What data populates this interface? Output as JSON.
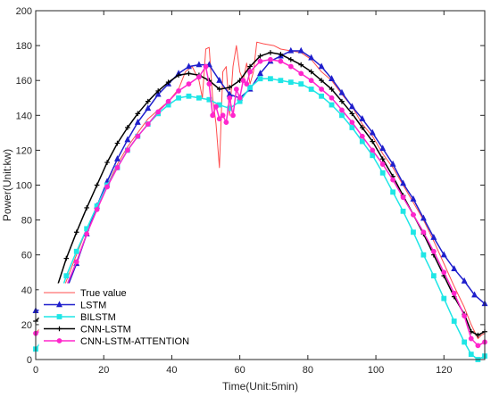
{
  "chart_data": {
    "type": "line",
    "xlabel": "Time(Unit:5min)",
    "ylabel": "Power(Unit:kw)",
    "xlim": [
      0,
      132
    ],
    "ylim": [
      0,
      200
    ],
    "xticks": [
      0,
      20,
      40,
      60,
      80,
      100,
      120
    ],
    "yticks": [
      0,
      20,
      40,
      60,
      80,
      100,
      120,
      140,
      160,
      180,
      200
    ],
    "grid": false,
    "legend_position": "bottom-left",
    "series": [
      {
        "name": "True value",
        "color": "#ff4d4d",
        "marker": "none",
        "points": [
          [
            0,
            15
          ],
          [
            3,
            22
          ],
          [
            6,
            30
          ],
          [
            9,
            45
          ],
          [
            12,
            60
          ],
          [
            15,
            75
          ],
          [
            18,
            88
          ],
          [
            21,
            100
          ],
          [
            24,
            112
          ],
          [
            27,
            122
          ],
          [
            30,
            130
          ],
          [
            33,
            138
          ],
          [
            36,
            143
          ],
          [
            39,
            148
          ],
          [
            42,
            155
          ],
          [
            44,
            165
          ],
          [
            46,
            168
          ],
          [
            48,
            160
          ],
          [
            49,
            150
          ],
          [
            50,
            178
          ],
          [
            51,
            179
          ],
          [
            52,
            150
          ],
          [
            53,
            135
          ],
          [
            54,
            110
          ],
          [
            55,
            165
          ],
          [
            56,
            168
          ],
          [
            57,
            140
          ],
          [
            58,
            168
          ],
          [
            59,
            180
          ],
          [
            60,
            165
          ],
          [
            61,
            160
          ],
          [
            62,
            170
          ],
          [
            63,
            158
          ],
          [
            64,
            165
          ],
          [
            65,
            182
          ],
          [
            67,
            181
          ],
          [
            70,
            180
          ],
          [
            72,
            178
          ],
          [
            75,
            177
          ],
          [
            78,
            176
          ],
          [
            81,
            172
          ],
          [
            84,
            165
          ],
          [
            87,
            160
          ],
          [
            90,
            152
          ],
          [
            93,
            145
          ],
          [
            96,
            135
          ],
          [
            99,
            128
          ],
          [
            102,
            118
          ],
          [
            105,
            110
          ],
          [
            108,
            100
          ],
          [
            111,
            90
          ],
          [
            114,
            80
          ],
          [
            117,
            68
          ],
          [
            120,
            55
          ],
          [
            123,
            42
          ],
          [
            126,
            30
          ],
          [
            128,
            20
          ],
          [
            130,
            12
          ],
          [
            131,
            14
          ],
          [
            132,
            15
          ]
        ]
      },
      {
        "name": "LSTM",
        "color": "#1f1fcc",
        "marker": "triangle",
        "points": [
          [
            0,
            28
          ],
          [
            3,
            29
          ],
          [
            6,
            32
          ],
          [
            9,
            40
          ],
          [
            12,
            55
          ],
          [
            15,
            72
          ],
          [
            18,
            88
          ],
          [
            21,
            102
          ],
          [
            24,
            115
          ],
          [
            27,
            126
          ],
          [
            30,
            136
          ],
          [
            33,
            144
          ],
          [
            36,
            152
          ],
          [
            39,
            158
          ],
          [
            42,
            164
          ],
          [
            45,
            168
          ],
          [
            48,
            169
          ],
          [
            51,
            169
          ],
          [
            54,
            160
          ],
          [
            57,
            152
          ],
          [
            60,
            150
          ],
          [
            63,
            155
          ],
          [
            66,
            164
          ],
          [
            69,
            171
          ],
          [
            72,
            174
          ],
          [
            75,
            177
          ],
          [
            78,
            177
          ],
          [
            81,
            173
          ],
          [
            84,
            168
          ],
          [
            87,
            161
          ],
          [
            90,
            153
          ],
          [
            93,
            145
          ],
          [
            96,
            138
          ],
          [
            99,
            130
          ],
          [
            102,
            121
          ],
          [
            105,
            112
          ],
          [
            108,
            101
          ],
          [
            111,
            92
          ],
          [
            114,
            81
          ],
          [
            117,
            70
          ],
          [
            120,
            60
          ],
          [
            123,
            52
          ],
          [
            126,
            45
          ],
          [
            129,
            37
          ],
          [
            132,
            32
          ]
        ]
      },
      {
        "name": "BILSTM",
        "color": "#1ee6e6",
        "marker": "square",
        "points": [
          [
            0,
            6
          ],
          [
            3,
            14
          ],
          [
            6,
            30
          ],
          [
            9,
            48
          ],
          [
            12,
            62
          ],
          [
            15,
            75
          ],
          [
            18,
            88
          ],
          [
            21,
            100
          ],
          [
            24,
            110
          ],
          [
            27,
            120
          ],
          [
            30,
            128
          ],
          [
            33,
            135
          ],
          [
            36,
            141
          ],
          [
            39,
            146
          ],
          [
            42,
            150
          ],
          [
            45,
            151
          ],
          [
            48,
            150
          ],
          [
            51,
            149
          ],
          [
            54,
            146
          ],
          [
            57,
            144
          ],
          [
            60,
            148
          ],
          [
            63,
            156
          ],
          [
            66,
            161
          ],
          [
            69,
            161
          ],
          [
            72,
            160
          ],
          [
            75,
            159
          ],
          [
            78,
            158
          ],
          [
            81,
            155
          ],
          [
            84,
            151
          ],
          [
            87,
            146
          ],
          [
            90,
            140
          ],
          [
            93,
            133
          ],
          [
            96,
            125
          ],
          [
            99,
            117
          ],
          [
            102,
            107
          ],
          [
            105,
            96
          ],
          [
            108,
            85
          ],
          [
            111,
            73
          ],
          [
            114,
            60
          ],
          [
            117,
            48
          ],
          [
            120,
            35
          ],
          [
            123,
            22
          ],
          [
            126,
            10
          ],
          [
            128,
            3
          ],
          [
            130,
            0
          ],
          [
            132,
            2
          ]
        ]
      },
      {
        "name": "CNN-LSTM",
        "color": "#000000",
        "marker": "plus",
        "points": [
          [
            0,
            22
          ],
          [
            3,
            28
          ],
          [
            6,
            40
          ],
          [
            9,
            58
          ],
          [
            12,
            73
          ],
          [
            15,
            87
          ],
          [
            18,
            100
          ],
          [
            21,
            113
          ],
          [
            24,
            124
          ],
          [
            27,
            133
          ],
          [
            30,
            141
          ],
          [
            33,
            148
          ],
          [
            36,
            154
          ],
          [
            39,
            159
          ],
          [
            42,
            163
          ],
          [
            45,
            164
          ],
          [
            48,
            163
          ],
          [
            51,
            160
          ],
          [
            54,
            155
          ],
          [
            57,
            156
          ],
          [
            60,
            160
          ],
          [
            63,
            168
          ],
          [
            66,
            174
          ],
          [
            69,
            176
          ],
          [
            72,
            175
          ],
          [
            75,
            172
          ],
          [
            78,
            169
          ],
          [
            81,
            165
          ],
          [
            84,
            160
          ],
          [
            87,
            155
          ],
          [
            90,
            148
          ],
          [
            93,
            141
          ],
          [
            96,
            133
          ],
          [
            99,
            125
          ],
          [
            102,
            115
          ],
          [
            105,
            105
          ],
          [
            108,
            94
          ],
          [
            111,
            83
          ],
          [
            114,
            72
          ],
          [
            117,
            60
          ],
          [
            120,
            48
          ],
          [
            123,
            36
          ],
          [
            126,
            26
          ],
          [
            128,
            16
          ],
          [
            130,
            14
          ],
          [
            132,
            16
          ]
        ]
      },
      {
        "name": "CNN-LSTM-ATTENTION",
        "color": "#ff26cc",
        "marker": "circle",
        "points": [
          [
            0,
            15
          ],
          [
            3,
            18
          ],
          [
            6,
            28
          ],
          [
            9,
            42
          ],
          [
            12,
            56
          ],
          [
            15,
            72
          ],
          [
            18,
            86
          ],
          [
            21,
            99
          ],
          [
            24,
            110
          ],
          [
            27,
            120
          ],
          [
            30,
            128
          ],
          [
            33,
            135
          ],
          [
            36,
            142
          ],
          [
            39,
            148
          ],
          [
            42,
            154
          ],
          [
            45,
            158
          ],
          [
            48,
            162
          ],
          [
            50,
            168
          ],
          [
            51,
            158
          ],
          [
            52,
            140
          ],
          [
            53,
            145
          ],
          [
            54,
            138
          ],
          [
            55,
            140
          ],
          [
            56,
            136
          ],
          [
            57,
            150
          ],
          [
            58,
            140
          ],
          [
            59,
            155
          ],
          [
            60,
            150
          ],
          [
            61,
            160
          ],
          [
            62,
            158
          ],
          [
            63,
            165
          ],
          [
            66,
            171
          ],
          [
            69,
            172
          ],
          [
            72,
            171
          ],
          [
            75,
            168
          ],
          [
            78,
            164
          ],
          [
            81,
            160
          ],
          [
            84,
            155
          ],
          [
            87,
            150
          ],
          [
            90,
            143
          ],
          [
            93,
            136
          ],
          [
            96,
            128
          ],
          [
            99,
            120
          ],
          [
            102,
            112
          ],
          [
            105,
            103
          ],
          [
            108,
            93
          ],
          [
            111,
            83
          ],
          [
            114,
            73
          ],
          [
            117,
            62
          ],
          [
            120,
            50
          ],
          [
            123,
            38
          ],
          [
            126,
            25
          ],
          [
            128,
            12
          ],
          [
            130,
            8
          ],
          [
            132,
            10
          ]
        ]
      }
    ]
  }
}
